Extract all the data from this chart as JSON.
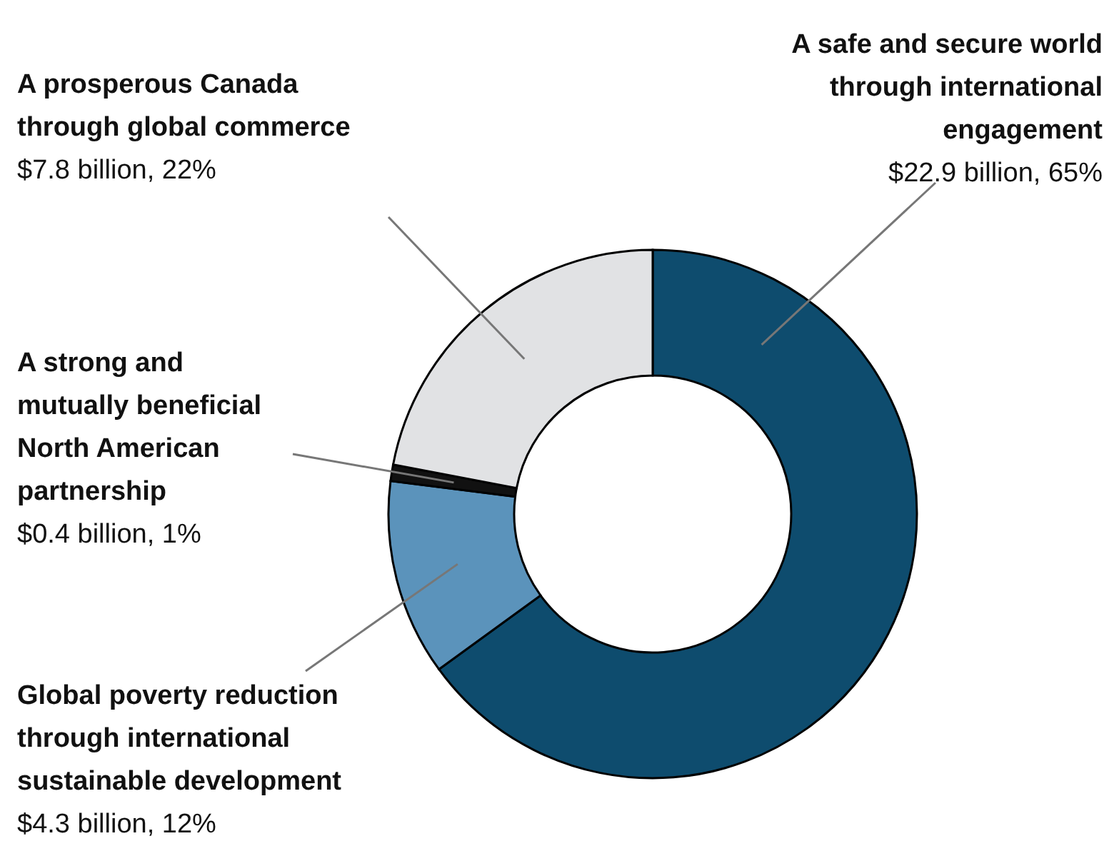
{
  "chart_data": {
    "type": "donut",
    "categories": [
      "A safe and secure world through international engagement",
      "Global poverty reduction through international sustainable development",
      "A strong and mutually beneficial North American partnership",
      "A prosperous Canada through global commerce"
    ],
    "values": [
      65,
      12,
      1,
      22
    ],
    "colors": [
      "#0e4c6e",
      "#5b93bb",
      "#111111",
      "#e1e2e4"
    ],
    "value_labels": [
      "$22.9 billion, 65%",
      "$4.3 billion, 12%",
      "$0.4 billion, 1%",
      "$7.8 billion, 22%"
    ]
  }
}
